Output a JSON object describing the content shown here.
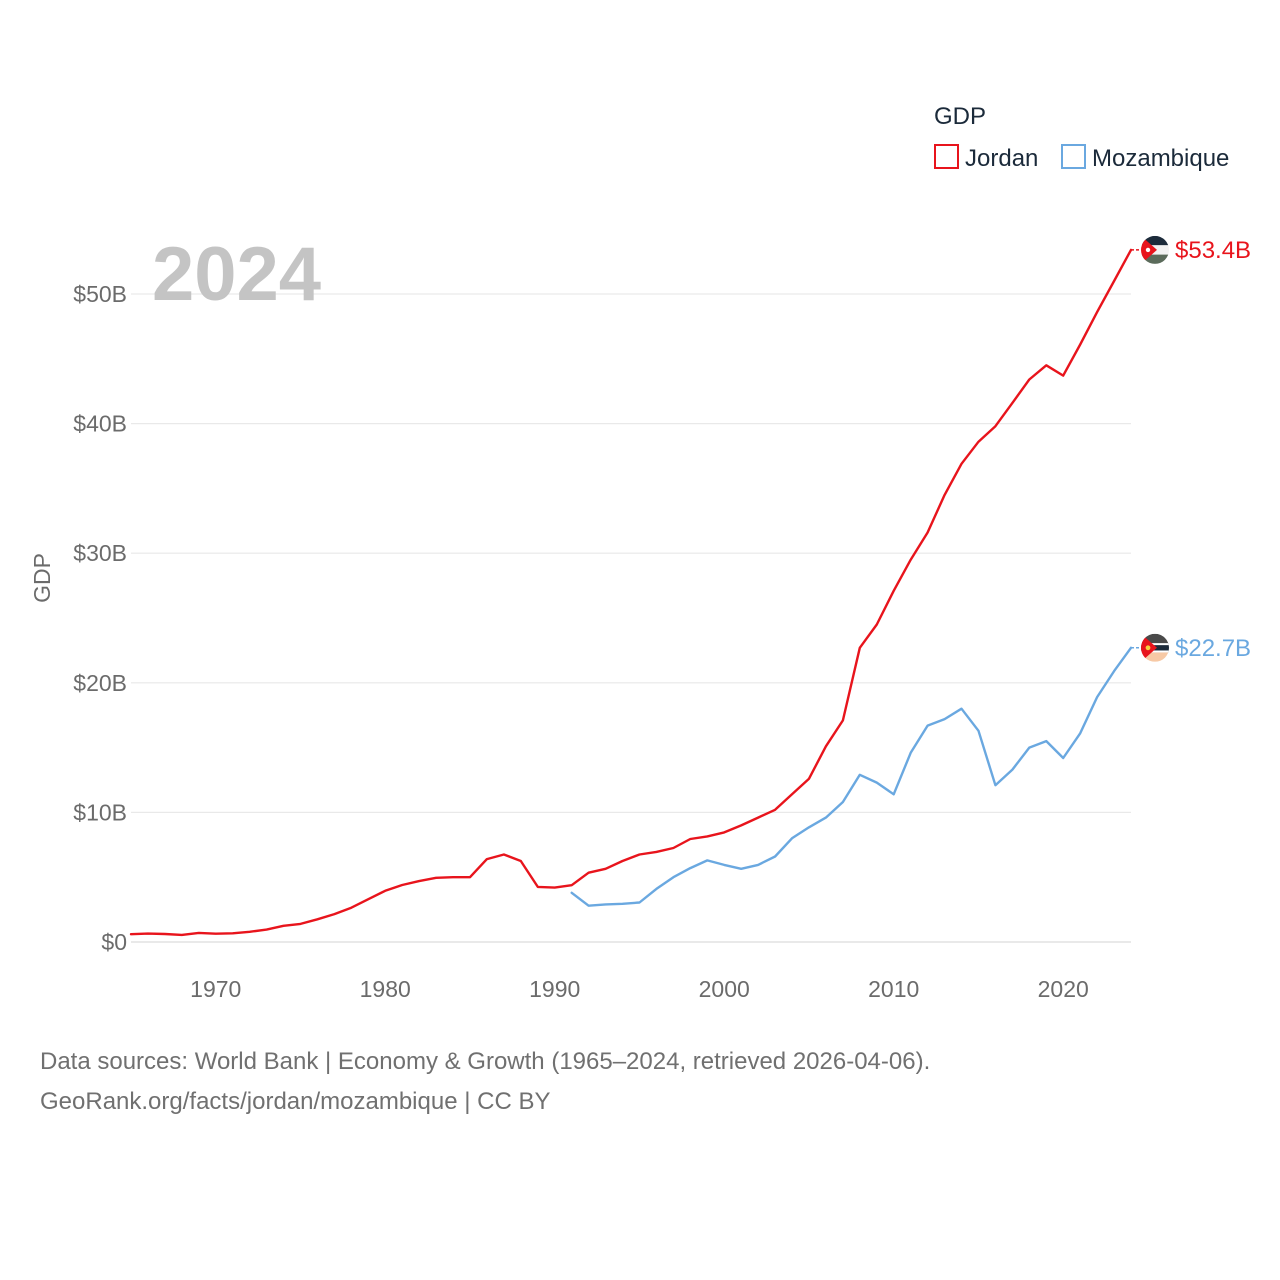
{
  "chart_data": {
    "type": "line",
    "title": "2024",
    "xlabel": "",
    "ylabel": "GDP",
    "xlim": [
      1965,
      2024
    ],
    "ylim": [
      0,
      50
    ],
    "y_unit": "billion USD",
    "x_ticks": [
      "1970",
      "1980",
      "1990",
      "2000",
      "2010",
      "2020"
    ],
    "y_ticks": [
      "$0",
      "$10B",
      "$20B",
      "$30B",
      "$40B",
      "$50B"
    ],
    "legend": {
      "title": "GDP",
      "position": "top-right"
    },
    "series": [
      {
        "name": "Jordan",
        "color": "#e8141c",
        "end_label": "$53.4B",
        "flag_icon": "jordan-flag-icon",
        "x": [
          1965,
          1966,
          1967,
          1968,
          1969,
          1970,
          1971,
          1972,
          1973,
          1974,
          1975,
          1976,
          1977,
          1978,
          1979,
          1980,
          1981,
          1982,
          1983,
          1984,
          1985,
          1986,
          1987,
          1988,
          1989,
          1990,
          1991,
          1992,
          1993,
          1994,
          1995,
          1996,
          1997,
          1998,
          1999,
          2000,
          2001,
          2002,
          2003,
          2004,
          2005,
          2006,
          2007,
          2008,
          2009,
          2010,
          2011,
          2012,
          2013,
          2014,
          2015,
          2016,
          2017,
          2018,
          2019,
          2020,
          2021,
          2022,
          2023,
          2024
        ],
        "values": [
          0.6,
          0.65,
          0.62,
          0.55,
          0.7,
          0.64,
          0.67,
          0.79,
          0.96,
          1.25,
          1.4,
          1.75,
          2.15,
          2.65,
          3.3,
          3.95,
          4.4,
          4.7,
          4.95,
          5.0,
          5.0,
          6.4,
          6.75,
          6.25,
          4.25,
          4.2,
          4.38,
          5.35,
          5.65,
          6.25,
          6.75,
          6.95,
          7.25,
          7.95,
          8.15,
          8.46,
          9.0,
          9.6,
          10.2,
          11.4,
          12.6,
          15.1,
          17.1,
          22.7,
          24.5,
          27.1,
          29.5,
          31.6,
          34.5,
          36.9,
          38.6,
          39.8,
          41.6,
          43.4,
          44.5,
          43.7,
          46.1,
          48.6,
          51.0,
          53.4
        ]
      },
      {
        "name": "Mozambique",
        "color": "#6aa8e0",
        "end_label": "$22.7B",
        "flag_icon": "mozambique-flag-icon",
        "x": [
          1991,
          1992,
          1993,
          1994,
          1995,
          1996,
          1997,
          1998,
          1999,
          2000,
          2001,
          2002,
          2003,
          2004,
          2005,
          2006,
          2007,
          2008,
          2009,
          2010,
          2011,
          2012,
          2013,
          2014,
          2015,
          2016,
          2017,
          2018,
          2019,
          2020,
          2021,
          2022,
          2023,
          2024
        ],
        "values": [
          3.8,
          2.8,
          2.9,
          2.95,
          3.05,
          4.1,
          5.0,
          5.7,
          6.3,
          5.95,
          5.65,
          5.95,
          6.6,
          8.0,
          8.85,
          9.6,
          10.8,
          12.9,
          12.3,
          11.4,
          14.6,
          16.7,
          17.2,
          18.0,
          16.3,
          12.1,
          13.3,
          15.0,
          15.5,
          14.2,
          16.1,
          18.9,
          20.9,
          22.7
        ]
      }
    ]
  },
  "footer": {
    "line1": "Data sources: World Bank | Economy & Growth (1965–2024, retrieved 2026-04-06).",
    "line2": "GeoRank.org/facts/jordan/mozambique | CC BY"
  }
}
